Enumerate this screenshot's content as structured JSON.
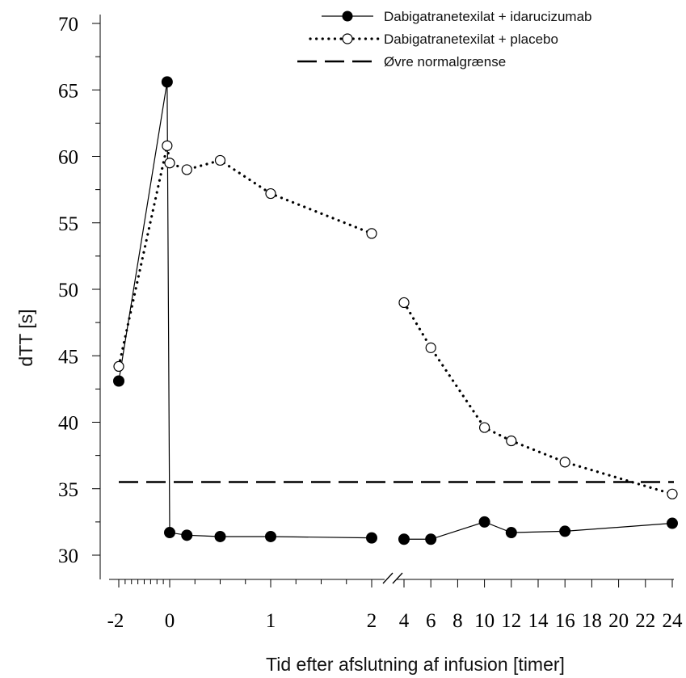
{
  "chart_data": {
    "type": "line",
    "ylabel": "dTT [s]",
    "xlabel": "Tid efter afslutning af infusion [timer]",
    "ylim": [
      30,
      70
    ],
    "y_ticks": [
      30,
      35,
      40,
      45,
      50,
      55,
      60,
      65,
      70
    ],
    "x_axis": {
      "broken": true,
      "segment_1": {
        "range": [
          -2,
          2
        ],
        "tick_labels": [
          "-2",
          "0",
          "1",
          "2"
        ]
      },
      "segment_2": {
        "range": [
          4,
          24
        ],
        "tick_labels": [
          "4",
          "6",
          "8",
          "10",
          "12",
          "14",
          "16",
          "18",
          "20",
          "22",
          "24"
        ]
      }
    },
    "legend": {
      "placement": "top-right",
      "entries": [
        "Dabigatranetexilat + idarucizumab",
        "Dabigatranetexilat + placebo",
        "Øvre normalgrænse"
      ]
    },
    "series": [
      {
        "name": "Dabigatranetexilat + idarucizumab",
        "style": "solid",
        "marker": "filled-circle",
        "segments": [
          [
            [
              -2,
              43.1
            ],
            [
              -0.1,
              65.6
            ],
            [
              0,
              31.7
            ],
            [
              0.17,
              31.5
            ],
            [
              0.5,
              31.4
            ],
            [
              1,
              31.4
            ],
            [
              2,
              31.3
            ]
          ],
          [
            [
              4,
              31.2
            ],
            [
              6,
              31.2
            ],
            [
              10,
              32.5
            ],
            [
              12,
              31.7
            ],
            [
              16,
              31.8
            ],
            [
              24,
              32.4
            ]
          ]
        ]
      },
      {
        "name": "Dabigatranetexilat + placebo",
        "style": "dotted",
        "marker": "open-circle",
        "segments": [
          [
            [
              -2,
              44.2
            ],
            [
              -0.1,
              60.8
            ],
            [
              0,
              59.5
            ],
            [
              0.17,
              59.0
            ],
            [
              0.5,
              59.7
            ],
            [
              1,
              57.2
            ],
            [
              2,
              54.2
            ]
          ],
          [
            [
              4,
              49.0
            ],
            [
              6,
              45.6
            ],
            [
              10,
              39.6
            ],
            [
              12,
              38.6
            ],
            [
              16,
              37.0
            ],
            [
              24,
              34.6
            ]
          ]
        ]
      },
      {
        "name": "Øvre normalgrænse",
        "style": "dashed",
        "marker": "none",
        "y": 35.5
      }
    ],
    "grid": false,
    "colors": {
      "line": "#000000",
      "open_marker_fill": "#ffffff",
      "background": "#ffffff"
    }
  }
}
